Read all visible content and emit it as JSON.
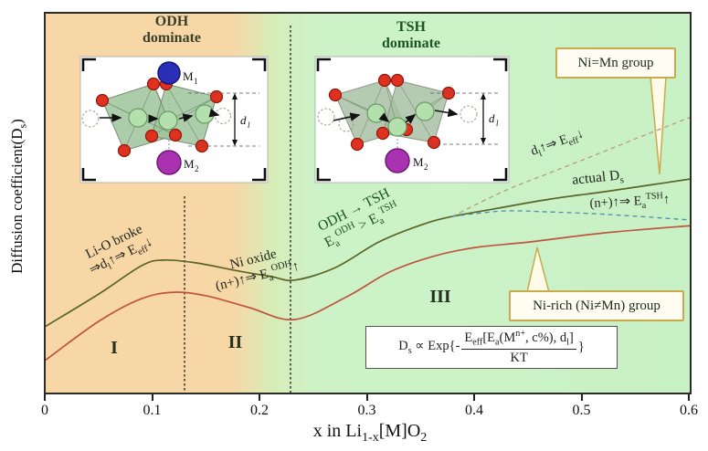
{
  "axes": {
    "y_label_html": "Diffusion coefficient(D<sub>s</sub>)",
    "x_label_html": "x in Li<sub>1-x</sub>[M]O<sub>2</sub>",
    "x_ticks": [
      "0",
      "0.1",
      "0.2",
      "0.3",
      "0.4",
      "0.5",
      "0.6"
    ]
  },
  "region_headers": {
    "odh_line1": "ODH",
    "odh_line2": "dominate",
    "tsh_line1": "TSH",
    "tsh_line2": "dominate"
  },
  "region_numerals": {
    "r1": "I",
    "r2": "II",
    "r3": "III"
  },
  "callouts": {
    "top": "Ni=Mn group",
    "bottom": "Ni-rich (Ni≠Mn) group"
  },
  "annotations": {
    "li_o_line1": "Li-O broke",
    "li_o_line2_html": "⇒d<sub>l</sub>↑⇒ E<sub>eff</sub>↓",
    "ni_oxide_line1": "Ni oxide",
    "ni_oxide_line2_html": "(n+)↑⇒ E<sub>a</sub><sup>ODH</sup>↑",
    "odh_tsh_line1": "ODH → TSH",
    "odh_tsh_line2_html": "E<sub>a</sub><sup>ODH</sup> &gt; E<sub>a</sub><sup>TSH</sup>",
    "dl_eeff_html": "d<sub>l</sub>↑⇒ E<sub>eff</sub>↓",
    "actual_ds_html": "actual D<sub>s</sub>",
    "n_plus_html": "(n+)↑⇒ E<sub>a</sub><sup>TSH</sup>↑"
  },
  "formula": {
    "lead_html": "D<sub>s</sub> ∝ Exp{-",
    "numerator_html": "E<sub>eff</sub>[E<sub>a</sub>(M<sup>n+</sup>, c%), d<sub>l</sub>]",
    "denominator": "KT",
    "close_brace": "}"
  },
  "insets": {
    "odh": {
      "m_label": "M",
      "m1_sub": "1",
      "m2_sub": "2",
      "d_label": "d",
      "d_sub": "l"
    },
    "tsh": {
      "m_label": "M",
      "m2_sub": "2",
      "d_label": "d",
      "d_sub": "l"
    }
  },
  "colors": {
    "bg_odh_region": "#f8d7a6",
    "bg_tsh_region": "#c9f1c6",
    "curve_actual": "#5a6527",
    "curve_ni_rich": "#c0543f",
    "curve_ideal_dashed": "#b89d7a",
    "curve_nplus_dashed": "#4a8fae",
    "callout_border": "#c9a94d",
    "header_tsh_green": "#1d5426"
  },
  "chart_data": {
    "type": "line",
    "xlabel": "x in Li1-x[M]O2",
    "ylabel": "Diffusion coefficient(Ds)",
    "x_range": [
      0,
      0.6
    ],
    "y_axis": "qualitative, arbitrary units 0-12 (no numeric scale shown)",
    "x_ticks": [
      0,
      0.1,
      0.2,
      0.3,
      0.4,
      0.5,
      0.6
    ],
    "grid": false,
    "legend": "none (curves labeled by callouts/annotations)",
    "phase_regions": [
      {
        "name": "ODH dominate",
        "x_range": [
          0,
          0.24
        ],
        "color": "#f8d7a6"
      },
      {
        "name": "TSH dominate",
        "x_range": [
          0.24,
          0.6
        ],
        "color": "#c9f1c6"
      }
    ],
    "stage_regions": [
      {
        "label": "I",
        "x_range": [
          0,
          0.13
        ]
      },
      {
        "label": "II",
        "x_range": [
          0.13,
          0.228
        ]
      },
      {
        "label": "III",
        "x_range": [
          0.228,
          0.6
        ]
      }
    ],
    "vlines_dashed_x": [
      0.13,
      0.228
    ],
    "series": [
      {
        "name": "actual Ds (Ni=Mn group, solid olive)",
        "style": "solid",
        "color": "#5a6527",
        "width": 1.7,
        "x": [
          0,
          0.05,
          0.09,
          0.11,
          0.14,
          0.18,
          0.21,
          0.232,
          0.27,
          0.31,
          0.35,
          0.378,
          0.42,
          0.47,
          0.52,
          0.56,
          0.6
        ],
        "v": [
          2.23,
          3.31,
          4.25,
          4.43,
          4.34,
          4.07,
          3.89,
          3.77,
          4.19,
          5.03,
          5.6,
          5.87,
          6.14,
          6.45,
          6.69,
          6.9,
          7.11
        ]
      },
      {
        "name": "Ni-rich (Ni≠Mn) group (solid red)",
        "style": "solid",
        "color": "#c0543f",
        "width": 1.7,
        "x": [
          0,
          0.05,
          0.09,
          0.12,
          0.15,
          0.19,
          0.232,
          0.28,
          0.32,
          0.36,
          0.4,
          0.45,
          0.52,
          0.6
        ],
        "v": [
          1.11,
          2.41,
          3.16,
          3.37,
          3.25,
          2.86,
          2.47,
          3.22,
          4.04,
          4.55,
          4.85,
          5.03,
          5.33,
          5.57
        ]
      },
      {
        "name": "ideal trend d_l↑ ⇒ E_eff↓ (tan dashed)",
        "style": "dashed",
        "color": "#b89d7a",
        "width": 1.3,
        "x": [
          0.378,
          0.425,
          0.467,
          0.51,
          0.552,
          0.6
        ],
        "v": [
          5.87,
          6.69,
          7.29,
          7.89,
          8.49,
          9.16
        ]
      },
      {
        "name": "(n+)↑ ⇒ Ea_TSH↑ suppressed trend (blue dashed)",
        "style": "dashed",
        "color": "#4a8fae",
        "width": 1.3,
        "x": [
          0.378,
          0.425,
          0.467,
          0.51,
          0.552,
          0.6
        ],
        "v": [
          5.87,
          6.05,
          6.02,
          5.96,
          5.87,
          5.75
        ]
      }
    ]
  }
}
